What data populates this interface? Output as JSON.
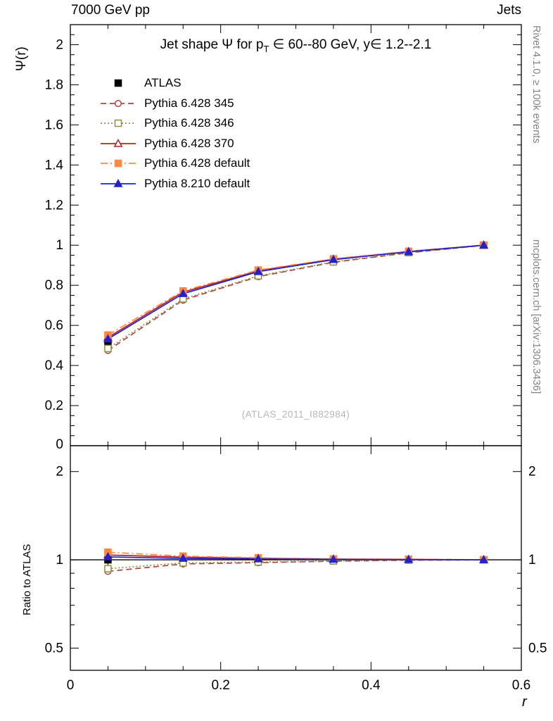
{
  "header": {
    "beam": "7000 GeV pp",
    "process": "Jets"
  },
  "title": {
    "prefix": "Jet shape Ψ for p",
    "sub": "T",
    "mid": " ∈ 60--80 GeV, y",
    "suffix": "∈ 1.2--2.1"
  },
  "watermark": "(ATLAS_2011_I882984)",
  "side_labels": {
    "top": "Rivet 4.1.0, ≥ 100k events",
    "bottom": "mcplots.cern.ch [arXiv:1306.3436]"
  },
  "chart_data": {
    "type": "line",
    "title": "Jet shape Ψ for p_T ∈ 60--80 GeV, y ∈ 1.2--2.1",
    "xlabel": "r",
    "ylabel": "Ψ(r)",
    "ratio_ylabel": "Ratio to ATLAS",
    "xlim": [
      0,
      0.6
    ],
    "ylim_main": [
      0,
      2.1
    ],
    "ylim_ratio": [
      0.42,
      2.45
    ],
    "ratio_axis_scale": "log",
    "x_major_ticks": [
      0,
      0.2,
      0.4,
      0.6
    ],
    "main_major_tick_step": 0.2,
    "ratio_major_ticks": [
      0.5,
      1,
      2
    ],
    "ratio_minor_ticks": [
      0.6,
      0.7,
      0.8,
      0.9
    ],
    "x": [
      0.05,
      0.15,
      0.25,
      0.35,
      0.45,
      0.55
    ],
    "series": [
      {
        "name": "ATLAS",
        "color": "#000000",
        "marker": "square",
        "marker_filled": true,
        "line_style": "none",
        "is_reference": true,
        "values": [
          0.52,
          0.75,
          0.862,
          0.925,
          0.965,
          1.0
        ],
        "errors": [
          0.02,
          0.014,
          0.01,
          0.007,
          0.005,
          0.003
        ]
      },
      {
        "name": "Pythia 6.428 345",
        "color": "#ad4343",
        "marker": "circle",
        "marker_filled": false,
        "line_style": "dashed",
        "values": [
          0.475,
          0.726,
          0.843,
          0.915,
          0.962,
          0.999
        ],
        "errors": [
          0.006,
          0.005,
          0.004,
          0.003,
          0.003,
          0.002
        ]
      },
      {
        "name": "Pythia 6.428 346",
        "color": "#8f8f3d",
        "marker": "square",
        "marker_filled": false,
        "line_style": "dotted",
        "values": [
          0.485,
          0.732,
          0.847,
          0.917,
          0.963,
          0.999
        ],
        "errors": [
          0.006,
          0.005,
          0.004,
          0.003,
          0.003,
          0.002
        ]
      },
      {
        "name": "Pythia 6.428 370",
        "color": "#b22222",
        "marker": "triangle",
        "marker_filled": false,
        "line_style": "solid",
        "values": [
          0.54,
          0.766,
          0.872,
          0.93,
          0.968,
          1.0
        ],
        "errors": [
          0.006,
          0.005,
          0.004,
          0.003,
          0.003,
          0.002
        ]
      },
      {
        "name": "Pythia 6.428 default",
        "color": "#ff8540",
        "marker": "square",
        "marker_filled": true,
        "line_style": "dashdot",
        "values": [
          0.552,
          0.772,
          0.876,
          0.932,
          0.97,
          1.001
        ],
        "errors": [
          0.006,
          0.005,
          0.004,
          0.003,
          0.003,
          0.002
        ]
      },
      {
        "name": "Pythia 8.210 default",
        "color": "#2222cc",
        "marker": "triangle",
        "marker_filled": true,
        "line_style": "solid",
        "values": [
          0.532,
          0.758,
          0.868,
          0.928,
          0.967,
          1.0
        ],
        "errors": [
          0.006,
          0.005,
          0.004,
          0.003,
          0.003,
          0.002
        ]
      }
    ]
  }
}
